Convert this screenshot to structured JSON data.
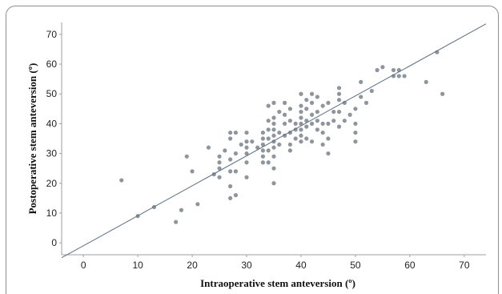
{
  "chart_data": {
    "type": "scatter",
    "title": "",
    "xlabel": "Intraoperative stem anteversion (º)",
    "ylabel": "Postoperative stem anteversion (º)",
    "xlim": [
      -4,
      74
    ],
    "ylim": [
      -4,
      74
    ],
    "xticks": [
      0,
      10,
      20,
      30,
      40,
      50,
      60,
      70
    ],
    "yticks": [
      0,
      10,
      20,
      30,
      40,
      50,
      60,
      70
    ],
    "grid": false,
    "colors": {
      "points": "#8e959c",
      "line": "#5d6f80"
    },
    "fit_line": {
      "x": [
        -4,
        74
      ],
      "y": [
        -5,
        73.5
      ]
    },
    "points": [
      [
        7,
        21
      ],
      [
        10,
        9
      ],
      [
        13,
        12
      ],
      [
        17,
        7
      ],
      [
        18,
        11
      ],
      [
        19,
        29
      ],
      [
        20,
        24
      ],
      [
        21,
        13
      ],
      [
        23,
        32
      ],
      [
        24,
        23
      ],
      [
        25,
        25
      ],
      [
        25,
        27
      ],
      [
        25,
        29
      ],
      [
        25,
        22
      ],
      [
        26,
        31
      ],
      [
        27,
        35
      ],
      [
        27,
        37
      ],
      [
        27,
        28
      ],
      [
        27,
        24
      ],
      [
        27,
        19
      ],
      [
        27,
        15
      ],
      [
        28,
        37
      ],
      [
        28,
        30
      ],
      [
        28,
        24
      ],
      [
        28,
        16
      ],
      [
        29,
        33
      ],
      [
        30,
        37
      ],
      [
        30,
        34
      ],
      [
        30,
        32
      ],
      [
        30,
        30
      ],
      [
        30,
        27
      ],
      [
        30,
        22
      ],
      [
        31,
        34
      ],
      [
        32,
        32
      ],
      [
        33,
        37
      ],
      [
        33,
        35
      ],
      [
        33,
        33
      ],
      [
        33,
        31
      ],
      [
        33,
        29
      ],
      [
        33,
        27
      ],
      [
        34,
        46
      ],
      [
        34,
        41
      ],
      [
        34,
        38
      ],
      [
        34,
        35
      ],
      [
        34,
        31
      ],
      [
        34,
        27
      ],
      [
        35,
        47
      ],
      [
        35,
        42
      ],
      [
        35,
        40
      ],
      [
        35,
        38
      ],
      [
        35,
        36
      ],
      [
        35,
        34
      ],
      [
        35,
        32
      ],
      [
        35,
        29
      ],
      [
        35,
        25
      ],
      [
        35,
        20
      ],
      [
        36,
        44
      ],
      [
        36,
        37
      ],
      [
        36,
        33
      ],
      [
        37,
        47
      ],
      [
        37,
        43
      ],
      [
        37,
        40
      ],
      [
        37,
        36
      ],
      [
        38,
        45
      ],
      [
        38,
        41
      ],
      [
        38,
        37
      ],
      [
        38,
        33
      ],
      [
        38,
        31
      ],
      [
        39,
        40
      ],
      [
        39,
        38
      ],
      [
        39,
        35
      ],
      [
        40,
        50
      ],
      [
        40,
        46
      ],
      [
        40,
        44
      ],
      [
        40,
        42
      ],
      [
        40,
        40
      ],
      [
        40,
        38
      ],
      [
        40,
        36
      ],
      [
        40,
        34
      ],
      [
        41,
        48
      ],
      [
        41,
        45
      ],
      [
        41,
        41
      ],
      [
        41,
        39
      ],
      [
        41,
        35
      ],
      [
        42,
        50
      ],
      [
        42,
        47
      ],
      [
        42,
        43
      ],
      [
        42,
        40
      ],
      [
        42,
        34
      ],
      [
        43,
        49
      ],
      [
        43,
        44
      ],
      [
        43,
        41
      ],
      [
        43,
        38
      ],
      [
        44,
        46
      ],
      [
        44,
        40
      ],
      [
        44,
        37
      ],
      [
        44,
        33
      ],
      [
        45,
        47
      ],
      [
        45,
        40
      ],
      [
        45,
        35
      ],
      [
        45,
        30
      ],
      [
        46,
        44
      ],
      [
        46,
        41
      ],
      [
        47,
        52
      ],
      [
        47,
        50
      ],
      [
        47,
        48
      ],
      [
        47,
        44
      ],
      [
        47,
        39
      ],
      [
        48,
        47
      ],
      [
        48,
        41
      ],
      [
        49,
        43
      ],
      [
        50,
        45
      ],
      [
        50,
        40
      ],
      [
        50,
        37
      ],
      [
        50,
        34
      ],
      [
        51,
        54
      ],
      [
        51,
        49
      ],
      [
        52,
        47
      ],
      [
        53,
        51
      ],
      [
        54,
        58
      ],
      [
        55,
        59
      ],
      [
        57,
        58
      ],
      [
        57,
        56
      ],
      [
        58,
        58
      ],
      [
        58,
        56
      ],
      [
        59,
        56
      ],
      [
        63,
        54
      ],
      [
        65,
        64
      ],
      [
        66,
        50
      ]
    ]
  }
}
